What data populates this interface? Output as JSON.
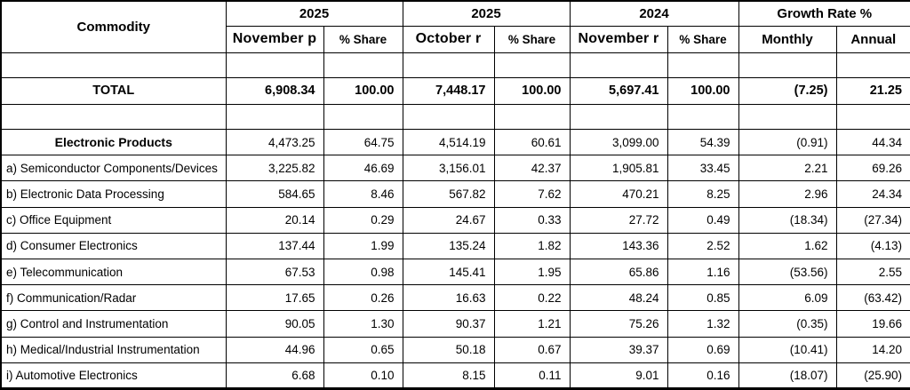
{
  "table": {
    "corner_header": "Commodity",
    "groups": [
      {
        "label": "2025",
        "sub": [
          "November p",
          "% Share"
        ]
      },
      {
        "label": "2025",
        "sub": [
          "October r",
          "% Share"
        ]
      },
      {
        "label": "2024",
        "sub": [
          "November r",
          "% Share"
        ]
      },
      {
        "label": "Growth Rate %",
        "sub": [
          "Monthly",
          "Annual"
        ]
      }
    ],
    "rows": [
      {
        "type": "empty",
        "label": "",
        "values": [
          "",
          "",
          "",
          "",
          "",
          "",
          "",
          ""
        ]
      },
      {
        "type": "total",
        "label": "TOTAL",
        "values": [
          "6,908.34",
          "100.00",
          "7,448.17",
          "100.00",
          "5,697.41",
          "100.00",
          "(7.25)",
          "21.25"
        ]
      },
      {
        "type": "empty",
        "label": "",
        "values": [
          "",
          "",
          "",
          "",
          "",
          "",
          "",
          ""
        ]
      },
      {
        "type": "group",
        "label": "Electronic Products",
        "values": [
          "4,473.25",
          "64.75",
          "4,514.19",
          "60.61",
          "3,099.00",
          "54.39",
          "(0.91)",
          "44.34"
        ]
      },
      {
        "type": "item",
        "label": "a) Semiconductor Components/Devices",
        "values": [
          "3,225.82",
          "46.69",
          "3,156.01",
          "42.37",
          "1,905.81",
          "33.45",
          "2.21",
          "69.26"
        ]
      },
      {
        "type": "item",
        "label": "b) Electronic Data Processing",
        "values": [
          "584.65",
          "8.46",
          "567.82",
          "7.62",
          "470.21",
          "8.25",
          "2.96",
          "24.34"
        ]
      },
      {
        "type": "item",
        "label": "c) Office Equipment",
        "values": [
          "20.14",
          "0.29",
          "24.67",
          "0.33",
          "27.72",
          "0.49",
          "(18.34)",
          "(27.34)"
        ]
      },
      {
        "type": "item",
        "label": "d) Consumer Electronics",
        "values": [
          "137.44",
          "1.99",
          "135.24",
          "1.82",
          "143.36",
          "2.52",
          "1.62",
          "(4.13)"
        ]
      },
      {
        "type": "item",
        "label": "e) Telecommunication",
        "values": [
          "67.53",
          "0.98",
          "145.41",
          "1.95",
          "65.86",
          "1.16",
          "(53.56)",
          "2.55"
        ]
      },
      {
        "type": "item",
        "label": "f) Communication/Radar",
        "values": [
          "17.65",
          "0.26",
          "16.63",
          "0.22",
          "48.24",
          "0.85",
          "6.09",
          "(63.42)"
        ]
      },
      {
        "type": "item",
        "label": "g) Control and Instrumentation",
        "values": [
          "90.05",
          "1.30",
          "90.37",
          "1.21",
          "75.26",
          "1.32",
          "(0.35)",
          "19.66"
        ]
      },
      {
        "type": "item",
        "label": "h) Medical/Industrial Instrumentation",
        "values": [
          "44.96",
          "0.65",
          "50.18",
          "0.67",
          "39.37",
          "0.69",
          "(10.41)",
          "14.20"
        ]
      },
      {
        "type": "item",
        "label": "i) Automotive Electronics",
        "values": [
          "6.68",
          "0.10",
          "8.15",
          "0.11",
          "9.01",
          "0.16",
          "(18.07)",
          "(25.90)"
        ]
      }
    ]
  }
}
